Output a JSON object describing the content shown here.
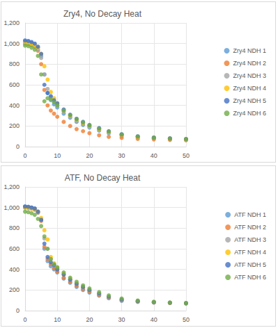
{
  "chart_data": [
    {
      "type": "scatter",
      "title": "Zry4, No Decay Heat",
      "x": [
        0,
        1,
        2,
        3,
        4,
        5,
        6,
        7,
        8,
        9,
        10,
        12,
        14,
        16,
        18,
        20,
        23,
        26,
        30,
        35,
        40,
        45,
        50
      ],
      "series": [
        {
          "name": "Zry4 NDH 1",
          "color": "#5B9BD5",
          "values": [
            1020,
            1015,
            1005,
            990,
            960,
            880,
            700,
            520,
            450,
            410,
            380,
            320,
            280,
            240,
            210,
            185,
            155,
            130,
            105,
            90,
            80,
            75,
            70
          ]
        },
        {
          "name": "Zry4 NDH 2",
          "color": "#ED7D31",
          "values": [
            1000,
            995,
            985,
            970,
            930,
            800,
            550,
            400,
            350,
            320,
            290,
            240,
            200,
            170,
            150,
            130,
            110,
            95,
            85,
            75,
            70,
            65,
            62
          ]
        },
        {
          "name": "Zry4 NDH 3",
          "color": "#A5A5A5",
          "values": [
            1000,
            998,
            990,
            975,
            940,
            860,
            700,
            560,
            480,
            440,
            400,
            340,
            290,
            250,
            220,
            195,
            165,
            140,
            115,
            95,
            85,
            78,
            72
          ]
        },
        {
          "name": "Zry4 NDH 4",
          "color": "#FFC000",
          "values": [
            1010,
            1005,
            995,
            985,
            960,
            900,
            780,
            650,
            530,
            470,
            420,
            350,
            300,
            260,
            230,
            200,
            170,
            140,
            115,
            95,
            85,
            78,
            72
          ]
        },
        {
          "name": "Zry4 NDH 5",
          "color": "#4472C4",
          "values": [
            1030,
            1025,
            1015,
            1000,
            970,
            900,
            600,
            520,
            490,
            450,
            420,
            360,
            310,
            270,
            240,
            210,
            180,
            150,
            120,
            100,
            88,
            80,
            74
          ]
        },
        {
          "name": "Zry4 NDH 6",
          "color": "#70AD47",
          "values": [
            980,
            975,
            960,
            940,
            880,
            700,
            440,
            470,
            460,
            430,
            400,
            350,
            305,
            265,
            235,
            205,
            175,
            145,
            118,
            98,
            86,
            78,
            72
          ]
        }
      ],
      "xlim": [
        0,
        50
      ],
      "xticks": [
        0,
        10,
        20,
        30,
        40,
        50
      ],
      "ylim": [
        0,
        1200
      ],
      "yticks": [
        0,
        200,
        400,
        600,
        800,
        1000,
        1200
      ],
      "grid": true,
      "legend": "right",
      "marker": "circle"
    },
    {
      "type": "scatter",
      "title": "ATF, No Decay Heat",
      "x": [
        0,
        1,
        2,
        3,
        4,
        5,
        6,
        7,
        8,
        9,
        10,
        12,
        14,
        16,
        18,
        20,
        23,
        26,
        30,
        35,
        40,
        45,
        50
      ],
      "series": [
        {
          "name": "ATF NDH 1",
          "color": "#5B9BD5",
          "values": [
            1010,
            1005,
            1000,
            990,
            960,
            880,
            600,
            480,
            430,
            400,
            370,
            310,
            270,
            230,
            200,
            175,
            145,
            120,
            95,
            85,
            78,
            74,
            70
          ]
        },
        {
          "name": "ATF NDH 2",
          "color": "#ED7D31",
          "values": [
            1000,
            995,
            990,
            980,
            950,
            870,
            620,
            500,
            450,
            410,
            380,
            320,
            280,
            240,
            210,
            185,
            150,
            125,
            100,
            88,
            80,
            75,
            70
          ]
        },
        {
          "name": "ATF NDH 3",
          "color": "#A5A5A5",
          "values": [
            1000,
            998,
            990,
            980,
            950,
            880,
            700,
            600,
            500,
            450,
            410,
            350,
            300,
            260,
            225,
            195,
            160,
            130,
            105,
            90,
            82,
            76,
            72
          ]
        },
        {
          "name": "ATF NDH 4",
          "color": "#FFC000",
          "values": [
            1000,
            998,
            990,
            980,
            960,
            900,
            780,
            690,
            520,
            460,
            420,
            360,
            310,
            265,
            230,
            200,
            165,
            135,
            108,
            92,
            83,
            77,
            72
          ]
        },
        {
          "name": "ATF NDH 5",
          "color": "#4472C4",
          "values": [
            1010,
            1008,
            1000,
            990,
            960,
            880,
            650,
            520,
            470,
            440,
            400,
            350,
            300,
            260,
            230,
            200,
            165,
            135,
            108,
            92,
            83,
            77,
            72
          ]
        },
        {
          "name": "ATF NDH 6",
          "color": "#70AD47",
          "values": [
            960,
            955,
            945,
            930,
            890,
            820,
            720,
            600,
            500,
            450,
            420,
            370,
            320,
            280,
            245,
            215,
            180,
            148,
            118,
            98,
            86,
            79,
            73
          ]
        }
      ],
      "xlim": [
        0,
        50
      ],
      "xticks": [
        0,
        10,
        20,
        30,
        40,
        50
      ],
      "ylim": [
        0,
        1200
      ],
      "yticks": [
        0,
        200,
        400,
        600,
        800,
        1000,
        1200
      ],
      "grid": true,
      "legend": "right",
      "marker": "circle"
    }
  ]
}
